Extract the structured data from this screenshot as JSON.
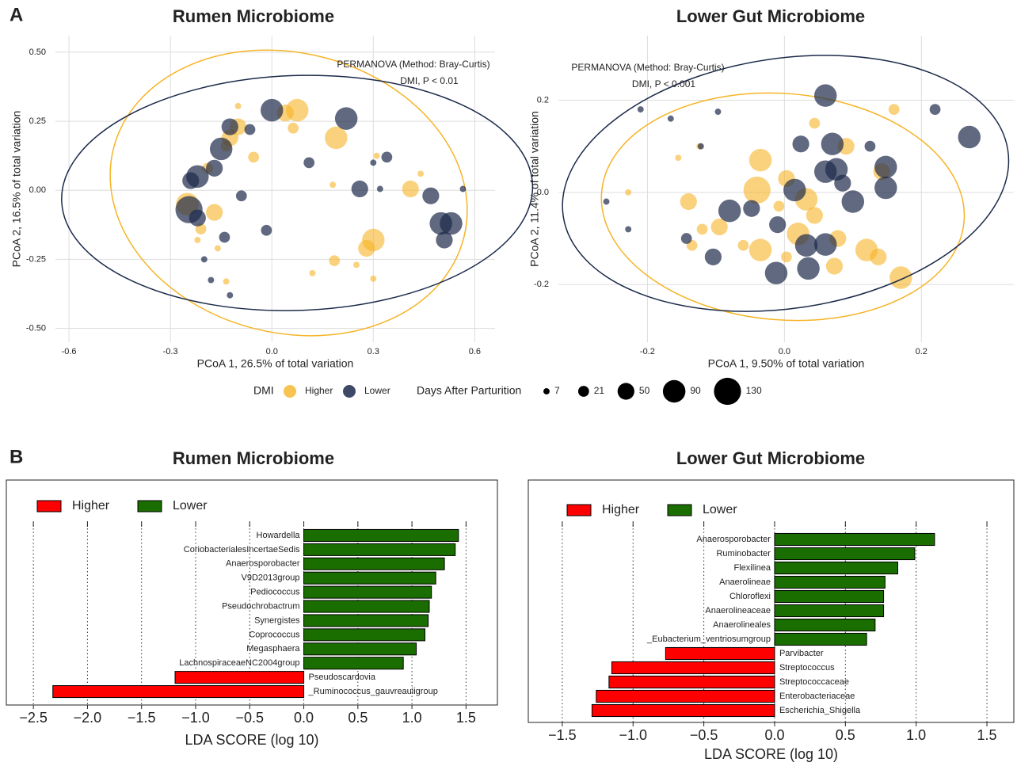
{
  "panel_labels": [
    "A",
    "B"
  ],
  "chart_data": [
    {
      "type": "scatter",
      "title": "Rumen Microbiome",
      "x_label": "PCoA 1, 26.5% of total variation",
      "y_label": "PCoA 2, 16.5% of total variation",
      "annotations": [
        "PERMANOVA (Method: Bray-Curtis)",
        "DMI, P < 0.01"
      ],
      "legend_title": "DMI",
      "size_legend": {
        "title": "Days After Parturition",
        "values": [
          7,
          21,
          50,
          90,
          130
        ]
      },
      "xlim": [
        -0.64,
        0.66
      ],
      "ylim": [
        -0.55,
        0.56
      ],
      "xticks": [
        {
          "value": -0.6,
          "label": "-0.6"
        },
        {
          "value": -0.3,
          "label": "-0.3"
        },
        {
          "value": 0,
          "label": "0.0"
        },
        {
          "value": 0.3,
          "label": "0.3"
        },
        {
          "value": 0.6,
          "label": "0.6"
        }
      ],
      "yticks": [
        {
          "value": 0.5,
          "label": "0.50"
        },
        {
          "value": 0.25,
          "label": "0.25"
        },
        {
          "value": 0,
          "label": "0.00"
        },
        {
          "value": -0.25,
          "label": "-0.25"
        },
        {
          "value": -0.5,
          "label": "-0.50"
        }
      ],
      "grid": true,
      "series": [
        {
          "name": "Higher",
          "color": "#f6b426",
          "x": [
            0.075,
            0.04,
            -0.054,
            -0.124,
            -0.1,
            0.19,
            -0.19,
            -0.25,
            -0.17,
            -0.21,
            -0.22,
            -0.16,
            -0.135,
            0.3,
            0.28,
            0.185,
            0.12,
            0.25,
            0.3,
            0.41,
            0.18,
            0.31,
            0.44,
            0.063,
            -0.1,
            -0.135
          ],
          "y": [
            0.29,
            0.28,
            0.12,
            0.19,
            0.23,
            0.19,
            0.08,
            -0.05,
            -0.08,
            -0.14,
            -0.18,
            -0.21,
            -0.33,
            -0.18,
            -0.21,
            -0.255,
            -0.3,
            -0.27,
            -0.32,
            0.005,
            0.02,
            0.125,
            0.06,
            0.225,
            0.305,
            0.16
          ],
          "sizes": [
            90,
            50,
            21,
            50,
            50,
            90,
            21,
            90,
            50,
            21,
            7,
            7,
            7,
            90,
            50,
            21,
            7,
            7,
            7,
            50,
            7,
            7,
            7,
            21,
            7,
            21
          ]
        },
        {
          "name": "Lower",
          "color": "#1c2a4a",
          "x": [
            0,
            0.22,
            -0.124,
            -0.15,
            -0.22,
            -0.17,
            -0.245,
            -0.22,
            -0.09,
            0.11,
            0.34,
            0.3,
            0.26,
            0.32,
            0.47,
            0.5,
            0.51,
            0.53,
            0.565,
            -0.016,
            -0.14,
            -0.2,
            -0.18,
            -0.124,
            -0.24,
            -0.065
          ],
          "y": [
            0.29,
            0.26,
            0.23,
            0.15,
            0.05,
            0.08,
            -0.07,
            -0.1,
            -0.02,
            0.1,
            0.12,
            0.1,
            0.005,
            0.005,
            -0.02,
            -0.12,
            -0.18,
            -0.12,
            0.005,
            -0.145,
            -0.17,
            -0.25,
            -0.325,
            -0.38,
            0.035,
            0.22
          ],
          "sizes": [
            90,
            90,
            50,
            90,
            90,
            50,
            130,
            50,
            21,
            21,
            21,
            7,
            50,
            7,
            50,
            90,
            50,
            90,
            7,
            21,
            21,
            7,
            7,
            7,
            50,
            21
          ]
        }
      ]
    },
    {
      "type": "scatter",
      "title": "Lower Gut Microbiome",
      "x_label": "PCoA 1, 9.50% of total variation",
      "y_label": "PCoA 2, 11.4% of total variation",
      "annotations": [
        "PERMANOVA (Method: Bray-Curtis)",
        "DMI, P < 0.001"
      ],
      "xlim": [
        -0.33,
        0.335
      ],
      "ylim": [
        -0.325,
        0.34
      ],
      "xticks": [
        {
          "value": -0.2,
          "label": "-0.2"
        },
        {
          "value": 0,
          "label": "0.0"
        },
        {
          "value": 0.2,
          "label": "0.2"
        }
      ],
      "yticks": [
        {
          "value": 0.2,
          "label": "0.2"
        },
        {
          "value": 0,
          "label": "0.0"
        },
        {
          "value": -0.2,
          "label": "-0.2"
        }
      ],
      "grid": true,
      "series": [
        {
          "name": "Higher",
          "color": "#f6b426",
          "x": [
            -0.035,
            -0.04,
            0.003,
            -0.14,
            -0.095,
            -0.06,
            -0.035,
            0.02,
            0.078,
            0.073,
            0.12,
            0.137,
            0.17,
            0.09,
            0.16,
            0.142,
            0.032,
            -0.008,
            0.044,
            -0.124,
            -0.155,
            -0.228,
            -0.12,
            -0.135,
            0.003,
            0.044
          ],
          "y": [
            0.07,
            0.005,
            0.03,
            -0.02,
            -0.075,
            -0.115,
            -0.125,
            -0.09,
            -0.1,
            -0.16,
            -0.125,
            -0.14,
            -0.185,
            0.1,
            0.18,
            0.045,
            -0.015,
            -0.03,
            0.15,
            0.1,
            0.075,
            0,
            -0.08,
            -0.115,
            -0.14,
            -0.05
          ],
          "sizes": [
            90,
            130,
            50,
            50,
            50,
            21,
            90,
            90,
            50,
            50,
            90,
            50,
            90,
            50,
            21,
            50,
            90,
            21,
            21,
            7,
            7,
            7,
            21,
            21,
            21,
            50
          ]
        },
        {
          "name": "Lower",
          "color": "#1c2a4a",
          "x": [
            0.06,
            0.22,
            0.27,
            -0.21,
            -0.166,
            -0.097,
            -0.122,
            0.07,
            0.024,
            0.076,
            0.148,
            0.125,
            0.06,
            0.1,
            0.148,
            0.015,
            -0.048,
            -0.08,
            -0.01,
            0.032,
            0.035,
            -0.012,
            -0.104,
            -0.143,
            -0.26,
            -0.228,
            0.06,
            0.085
          ],
          "y": [
            0.21,
            0.18,
            0.12,
            0.18,
            0.16,
            0.175,
            0.1,
            0.105,
            0.105,
            0.05,
            0.055,
            0.1,
            0.045,
            -0.02,
            0.01,
            0.005,
            -0.035,
            -0.04,
            -0.07,
            -0.115,
            -0.165,
            -0.175,
            -0.14,
            -0.1,
            -0.02,
            -0.08,
            -0.113,
            0.02
          ],
          "sizes": [
            90,
            21,
            90,
            7,
            7,
            7,
            7,
            90,
            50,
            90,
            90,
            21,
            90,
            90,
            90,
            90,
            50,
            90,
            50,
            90,
            90,
            90,
            50,
            21,
            7,
            7,
            90,
            50
          ]
        }
      ]
    },
    {
      "type": "hbar",
      "title": "Rumen Microbiome",
      "x_label": "LDA SCORE (log 10)",
      "legend": [
        {
          "name": "Higher",
          "color": "#ff0000"
        },
        {
          "name": "Lower",
          "color": "#1a6e00"
        }
      ],
      "categories": [
        "Howardella",
        "CoriobacterialesIncertaeSedis",
        "Anaerosporobacter",
        "V9D2013group",
        "Pediococcus",
        "Pseudochrobactrum",
        "Synergistes",
        "Coprococcus",
        "Megasphaera",
        "LachnospiraceaeNC2004group",
        "Pseudoscardovia",
        "_Ruminococcus_gauvreauiigroup"
      ],
      "values": [
        1.43,
        1.4,
        1.3,
        1.22,
        1.18,
        1.16,
        1.15,
        1.12,
        1.04,
        0.92,
        -1.19,
        -2.32
      ],
      "groups": [
        "Lower",
        "Lower",
        "Lower",
        "Lower",
        "Lower",
        "Lower",
        "Lower",
        "Lower",
        "Lower",
        "Lower",
        "Higher",
        "Higher"
      ],
      "xlim": [
        -2.75,
        1.79
      ],
      "xticks": [
        {
          "value": -2.5,
          "label": "−2.5"
        },
        {
          "value": -2,
          "label": "−2.0"
        },
        {
          "value": -1.5,
          "label": "−1.5"
        },
        {
          "value": -1,
          "label": "−1.0"
        },
        {
          "value": -0.5,
          "label": "−0.5"
        },
        {
          "value": 0,
          "label": "0.0"
        },
        {
          "value": 0.5,
          "label": "0.5"
        },
        {
          "value": 1,
          "label": "1.0"
        },
        {
          "value": 1.5,
          "label": "1.5"
        }
      ],
      "grid": true
    },
    {
      "type": "hbar",
      "title": "Lower Gut Microbiome",
      "x_label": "LDA SCORE (log 10)",
      "legend": [
        {
          "name": "Higher",
          "color": "#ff0000"
        },
        {
          "name": "Lower",
          "color": "#1a6e00"
        }
      ],
      "categories": [
        "Anaerosporobacter",
        "Ruminobacter",
        "Flexilinea",
        "Anaerolineae",
        "Chloroflexi",
        "Anaerolineaceae",
        "Anaerolineales",
        "_Eubacterium_ventriosumgroup",
        "Parvibacter",
        "Streptococcus",
        "Streptococcaceae",
        "Enterobacteriaceae",
        "Escherichia_Shigella"
      ],
      "values": [
        1.13,
        0.99,
        0.87,
        0.78,
        0.77,
        0.77,
        0.71,
        0.65,
        -0.77,
        -1.15,
        -1.17,
        -1.26,
        -1.29
      ],
      "groups": [
        "Lower",
        "Lower",
        "Lower",
        "Lower",
        "Lower",
        "Lower",
        "Lower",
        "Lower",
        "Higher",
        "Higher",
        "Higher",
        "Higher",
        "Higher"
      ],
      "xlim": [
        -1.74,
        1.69
      ],
      "xticks": [
        {
          "value": -1.5,
          "label": "−1.5"
        },
        {
          "value": -1,
          "label": "−1.0"
        },
        {
          "value": -0.5,
          "label": "−0.5"
        },
        {
          "value": 0,
          "label": "0.0"
        },
        {
          "value": 0.5,
          "label": "0.5"
        },
        {
          "value": 1,
          "label": "1.0"
        },
        {
          "value": 1.5,
          "label": "1.5"
        }
      ],
      "grid": true
    }
  ]
}
